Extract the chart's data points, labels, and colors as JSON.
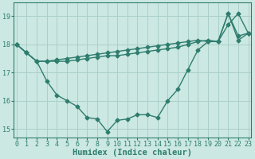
{
  "xlabel": "Humidex (Indice chaleur)",
  "x": [
    0,
    1,
    2,
    3,
    4,
    5,
    6,
    7,
    8,
    9,
    10,
    11,
    12,
    13,
    14,
    15,
    16,
    17,
    18,
    19,
    20,
    21,
    22,
    23
  ],
  "line1": [
    18.0,
    17.7,
    17.4,
    16.7,
    16.2,
    16.0,
    15.8,
    15.4,
    15.35,
    14.9,
    15.3,
    15.35,
    15.5,
    15.5,
    15.4,
    16.0,
    16.4,
    17.1,
    17.8,
    18.1,
    18.1,
    18.7,
    19.1,
    18.4
  ],
  "line2": [
    18.0,
    17.7,
    17.4,
    17.4,
    17.4,
    17.4,
    17.45,
    17.5,
    17.55,
    17.6,
    17.6,
    17.65,
    17.7,
    17.75,
    17.8,
    17.85,
    17.9,
    18.0,
    18.1,
    18.15,
    18.1,
    19.1,
    18.3,
    18.4
  ],
  "line3": [
    18.0,
    17.7,
    17.4,
    17.4,
    17.45,
    17.5,
    17.55,
    17.6,
    17.65,
    17.7,
    17.75,
    17.8,
    17.85,
    17.9,
    17.95,
    18.0,
    18.05,
    18.1,
    18.15,
    18.1,
    18.1,
    19.1,
    18.15,
    18.4
  ],
  "line_color": "#2e7d6e",
  "bg_color": "#cce8e2",
  "grid_color": "#aacfc9",
  "ylim": [
    14.7,
    19.5
  ],
  "yticks": [
    15,
    16,
    17,
    18,
    19
  ],
  "xticks": [
    0,
    1,
    2,
    3,
    4,
    5,
    6,
    7,
    8,
    9,
    10,
    11,
    12,
    13,
    14,
    15,
    16,
    17,
    18,
    19,
    20,
    21,
    22,
    23
  ],
  "xlim": [
    -0.3,
    23.3
  ],
  "markersize": 2.5,
  "linewidth": 1.0,
  "xlabel_fontsize": 7.5,
  "tick_fontsize": 6
}
